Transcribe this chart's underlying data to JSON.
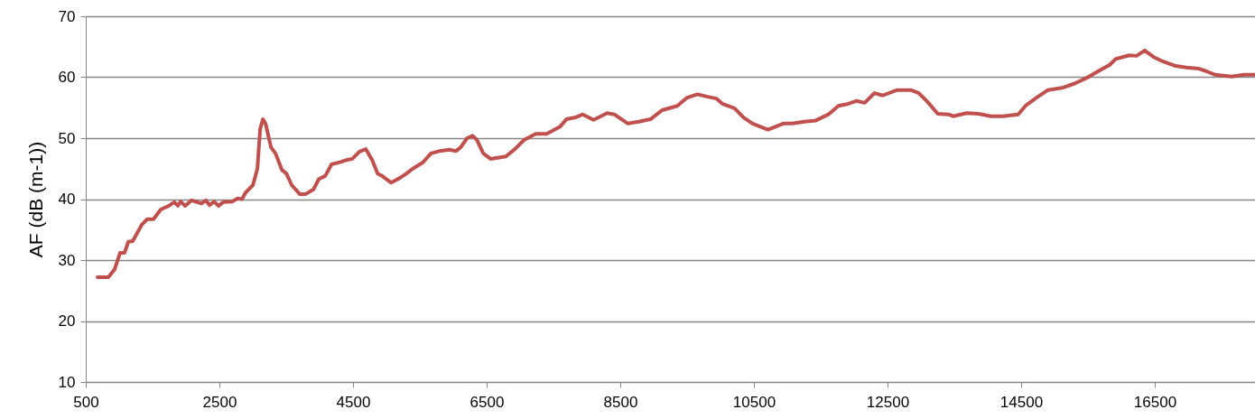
{
  "chart_data": {
    "type": "line",
    "ylabel": "AF (dB (m-1))",
    "xlim": [
      500,
      18000
    ],
    "xticks": [
      500,
      2500,
      4500,
      6500,
      8500,
      10500,
      12500,
      14500,
      16500
    ],
    "ylim": [
      10,
      70
    ],
    "yticks": [
      10,
      20,
      30,
      40,
      50,
      60,
      70
    ],
    "grid": "y",
    "series": [
      {
        "color": "#c0504d",
        "x": [
          676,
          838,
          933,
          1014,
          1081,
          1136,
          1203,
          1338,
          1420,
          1514,
          1622,
          1744,
          1825,
          1879,
          1920,
          1988,
          2082,
          2231,
          2299,
          2353,
          2420,
          2488,
          2555,
          2691,
          2772,
          2839,
          2894,
          3002,
          3069,
          3110,
          3151,
          3191,
          3272,
          3340,
          3435,
          3502,
          3583,
          3705,
          3786,
          3908,
          3989,
          4084,
          4178,
          4314,
          4395,
          4489,
          4597,
          4692,
          4787,
          4868,
          4936,
          5071,
          5206,
          5301,
          5395,
          5544,
          5666,
          5801,
          5936,
          6044,
          6112,
          6207,
          6288,
          6355,
          6450,
          6558,
          6788,
          6923,
          7059,
          7234,
          7397,
          7600,
          7694,
          7829,
          7938,
          8100,
          8303,
          8411,
          8614,
          8776,
          8952,
          9128,
          9355,
          9493,
          9655,
          9804,
          9939,
          10034,
          10210,
          10345,
          10480,
          10710,
          10940,
          11075,
          11251,
          11427,
          11616,
          11765,
          11900,
          12035,
          12157,
          12306,
          12427,
          12644,
          12846,
          12968,
          13103,
          13252,
          13414,
          13482,
          13685,
          13861,
          14050,
          14226,
          14456,
          14564,
          14726,
          14902,
          15132,
          15308,
          15483,
          15673,
          15822,
          15916,
          16119,
          16227,
          16349,
          16484,
          16619,
          16795,
          16971,
          17160,
          17268,
          17404,
          17647,
          17836,
          18000
        ],
        "values": [
          27.2,
          27.2,
          28.5,
          31.2,
          31.2,
          33,
          33.1,
          35.8,
          36.7,
          36.7,
          38.3,
          38.9,
          39.5,
          38.9,
          39.6,
          38.9,
          39.8,
          39.3,
          39.8,
          39,
          39.6,
          38.9,
          39.5,
          39.6,
          40.1,
          40,
          41.1,
          42.3,
          45,
          51.5,
          53.1,
          52.4,
          48.5,
          47.5,
          44.8,
          44.2,
          42.3,
          40.8,
          40.8,
          41.6,
          43.3,
          43.8,
          45.7,
          46.1,
          46.4,
          46.6,
          47.8,
          48.2,
          46.4,
          44.2,
          43.8,
          42.7,
          43.5,
          44.2,
          45,
          46,
          47.5,
          47.9,
          48.1,
          47.9,
          48.5,
          50,
          50.4,
          49.7,
          47.5,
          46.6,
          47,
          48.2,
          49.7,
          50.7,
          50.7,
          51.9,
          53.1,
          53.4,
          53.9,
          53,
          54.1,
          53.9,
          52.4,
          52.7,
          53.1,
          54.6,
          55.3,
          56.6,
          57.2,
          56.8,
          56.5,
          55.6,
          54.9,
          53.4,
          52.4,
          51.4,
          52.4,
          52.4,
          52.7,
          52.9,
          53.9,
          55.3,
          55.6,
          56.1,
          55.8,
          57.4,
          57,
          57.9,
          57.9,
          57.4,
          55.9,
          54,
          53.9,
          53.6,
          54.1,
          54,
          53.6,
          53.6,
          53.9,
          55.3,
          56.6,
          57.9,
          58.3,
          59,
          59.9,
          61.1,
          62,
          63,
          63.6,
          63.5,
          64.4,
          63.3,
          62.6,
          61.9,
          61.6,
          61.4,
          61,
          60.4,
          60.1,
          60.4,
          60.4
        ]
      }
    ]
  }
}
